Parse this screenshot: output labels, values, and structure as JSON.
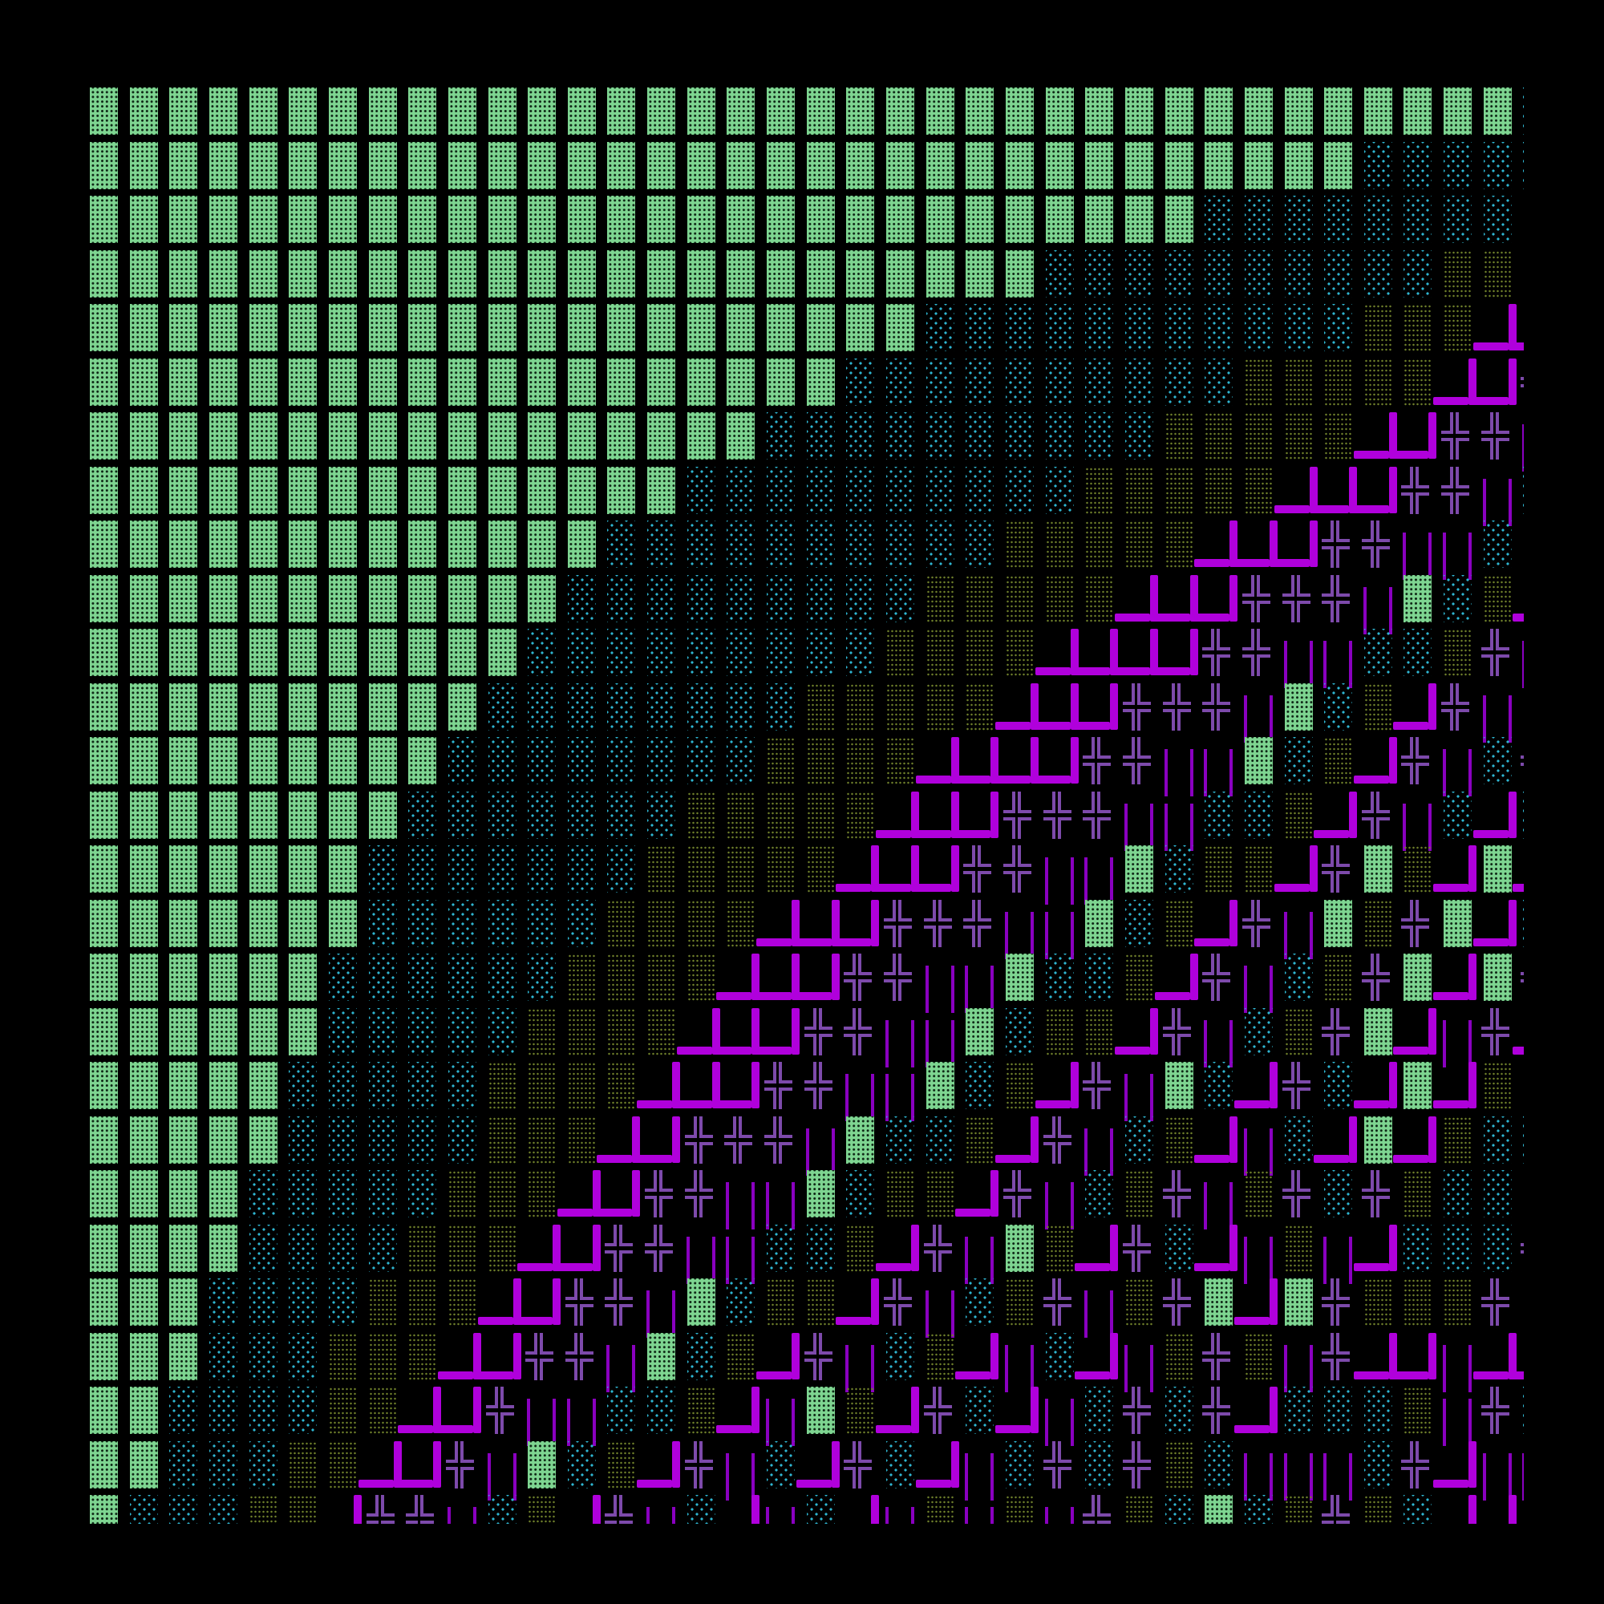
{
  "palette": {
    "background": "#000000",
    "dark_shade": "#7ed591",
    "light_shade": "#2fb6d2",
    "medium_shade": "#6f802b",
    "heavy_corner": "#b000dc",
    "double_cross": "#7d4aab",
    "double_vertical": "#8a00c0"
  },
  "glyphs": {
    "▓": "dark-shade",
    "░": "light-shade",
    "▒": "medium-shade",
    "┛": "heavy-up-left-corner",
    "╬": "double-cross",
    "║": "double-vertical"
  },
  "grid": {
    "rows": [
      "▓▓▓▓▓▓▓▓▓▓▓▓▓▓▓▓▓▓▓▓▓▓▓▓▓▓▓▓▓▓▓▓▓▓▓▓░",
      "▓▓▓▓▓▓▓▓▓▓▓▓▓▓▓▓▓▓▓▓▓▓▓▓▓▓▓▓▓▓▓▓░░░░░",
      "▓▓▓▓▓▓▓▓▓▓▓▓▓▓▓▓▓▓▓▓▓▓▓▓▓▓▓▓░░░░░░░░▒",
      "▓▓▓▓▓▓▓▓▓▓▓▓▓▓▓▓▓▓▓▓▓▓▓▓░░░░░░░░░░▒▒▒",
      "▓▓▓▓▓▓▓▓▓▓▓▓▓▓▓▓▓▓▓▓▓░░░░░░░░░░░▒▒▒┛┛",
      "▓▓▓▓▓▓▓▓▓▓▓▓▓▓▓▓▓▓▓░░░░░░░░░░▒▒▒▒▒┛┛╬",
      "▓▓▓▓▓▓▓▓▓▓▓▓▓▓▓▓▓░░░░░░░░░░▒▒▒▒▒┛┛╬╬║",
      "▓▓▓▓▓▓▓▓▓▓▓▓▓▓▓░░░░░░░░░░▒▒▒▒▒┛┛┛╬╬║░",
      "▓▓▓▓▓▓▓▓▓▓▓▓▓░░░░░░░░░░▒▒▒▒▒┛┛┛╬╬║║░▒",
      "▓▓▓▓▓▓▓▓▓▓▓▓░░░░░░░░░▒▒▒▒▒┛┛┛╬╬╬║▓░▒┛",
      "▓▓▓▓▓▓▓▓▓▓▓░░░░░░░░░▒▒▒▒┛┛┛┛╬╬║║░░▒╬║",
      "▓▓▓▓▓▓▓▓▓▓░░░░░░░░▒▒▒▒▒┛┛┛╬╬╬║▓░▒┛╬║▒",
      "▓▓▓▓▓▓▓▓▓░░░░░░░░▒▒▒▒┛┛┛┛╬╬║║▓░▒┛╬║░╬",
      "▓▓▓▓▓▓▓▓░░░░░░░▒▒▒▒▒┛┛┛╬╬╬║║░░▒┛╬║░┛░",
      "▓▓▓▓▓▓▓░░░░░░░▒▒▒▒▒┛┛┛╬╬║║▓░▒▒┛╬▓▒┛▓┛",
      "▓▓▓▓▓▓▓░░░░░░▒▒▒▒┛┛┛╬╬╬║║▓░▒┛╬║▓▒╬▓┛░",
      "▓▓▓▓▓▓░░░░░░▒▒▒▒┛┛┛╬╬║║▓░░▒┛╬║░▒╬▓┛▓╬",
      "▓▓▓▓▓▓░░░░░▒▒▒▒┛┛┛╬╬║║▓░▒▒┛╬║░▒╬▓┛║╬┛",
      "▓▓▓▓▓░░░░░▒▒▒▒┛┛┛╬╬║║▓░▒┛╬║▓░┛╬░┛▓┛▒▒",
      "▓▓▓▓▓░░░░░▒▒▒┛┛╬╬╬║▓░░▒┛╬║░▒┛║░┛▓┛▒░░",
      "▓▓▓▓░░░░░▒▒▒┛┛╬╬║║▓░▒▒┛╬║░▒╬║▒╬░╬▒░░▒",
      "▓▓▓▓░░░░▒▒▒┛┛╬╬║║░░▒┛╬║▓▒┛╬░┛║▒║┛░░░╬",
      "▓▓▓░░░░▒▒▒┛┛╬╬║▓░▒▒┛╬║░▒╬║▒╬▓┛▓╬▒▒▒╬▒",
      "▓▓▓░░░▒▒▒┛┛╬╬║▓░▒┛╬║░▒┛║░┛║▒╬▒║╬┛┛║┛┛",
      "▓▓░░░░▒▒┛┛╬║║░░▒┛║▓▒┛╬░┛║░╬░╬┛░░░▒║╬░",
      "▓▓░░░▒▒┛┛╬║▓░▒┛╬║░┛╬░┛║░╬░╬▒░║║║░╬┛║║",
      "▓░░░▒▒┛╬╬║░▒┛╬║░┛║░┛║▒║▒║╬▒░▓░▒╬▒░┛┛▒"
    ]
  }
}
